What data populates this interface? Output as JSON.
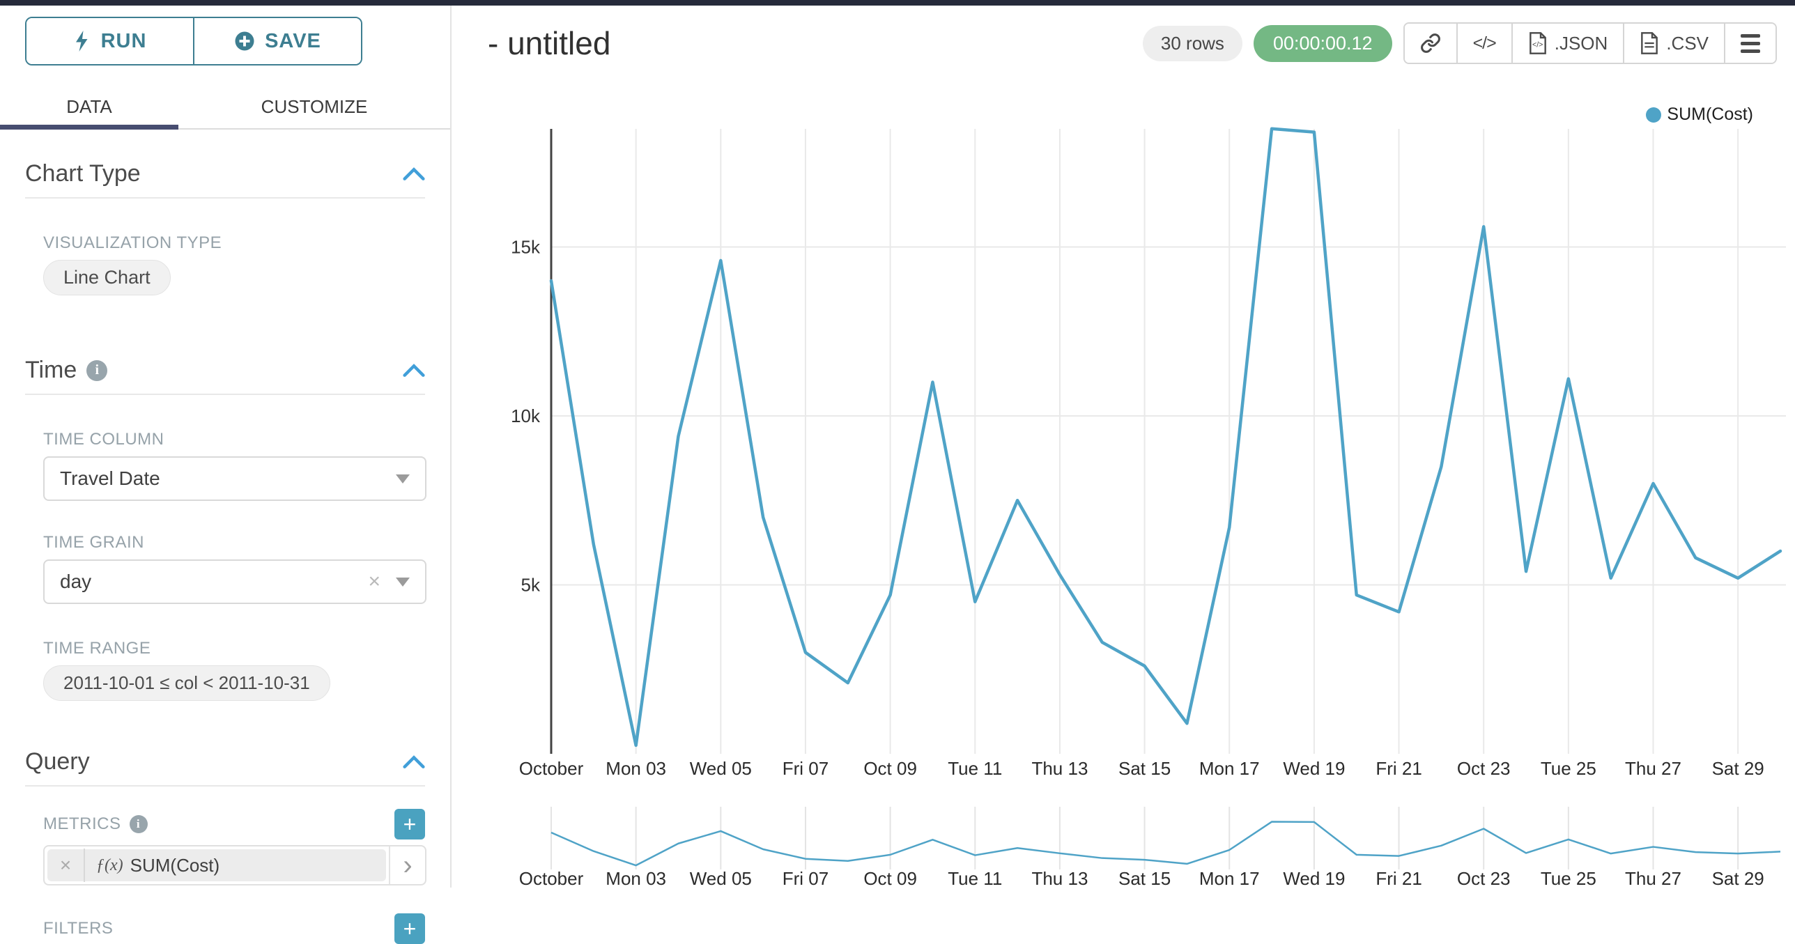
{
  "colors": {
    "accent_teal": "#3D7E91",
    "add_button_blue": "#4AA2C0",
    "section_chevron_blue": "#419FD9",
    "active_tab_underline": "#474D70",
    "timer_green": "#74B884",
    "series_line": "#4FA3C7",
    "top_bar": "#262A3B"
  },
  "icons": [
    "lightning-icon",
    "plus-circle-icon",
    "info-icon",
    "chevron-up-icon",
    "caret-down-icon",
    "clear-x-icon",
    "add-plus-icon",
    "chevron-right-icon",
    "link-icon",
    "code-icon",
    "file-json-icon",
    "file-csv-icon",
    "menu-icon",
    "legend-dot"
  ],
  "sidebar": {
    "run_label": "RUN",
    "save_label": "SAVE",
    "tabs": [
      {
        "label": "DATA",
        "active": true
      },
      {
        "label": "CUSTOMIZE",
        "active": false
      }
    ],
    "chart_type": {
      "title": "Chart Type",
      "viz_label": "VISUALIZATION TYPE",
      "viz_value": "Line Chart"
    },
    "time": {
      "title": "Time",
      "col_label": "TIME COLUMN",
      "col_value": "Travel Date",
      "grain_label": "TIME GRAIN",
      "grain_value": "day",
      "range_label": "TIME RANGE",
      "range_value": "2011-10-01 ≤ col < 2011-10-31"
    },
    "query": {
      "title": "Query",
      "metrics_label": "METRICS",
      "metric_fx": "ƒ(x)",
      "metric_value": "SUM(Cost)",
      "filters_label": "FILTERS"
    }
  },
  "header": {
    "title": "- untitled",
    "rows_badge": "30 rows",
    "timer": "00:00:00.12",
    "export": {
      "json_label": ".JSON",
      "csv_label": ".CSV"
    }
  },
  "chart_data": {
    "type": "line",
    "title": "",
    "legend": [
      {
        "name": "SUM(Cost)",
        "color": "#4FA3C7",
        "position": "top-right"
      }
    ],
    "num_points": 30,
    "x_tick_labels": [
      "October",
      "Mon 03",
      "Wed 05",
      "Fri 07",
      "Oct 09",
      "Tue 11",
      "Thu 13",
      "Sat 15",
      "Mon 17",
      "Wed 19",
      "Fri 21",
      "Oct 23",
      "Tue 25",
      "Thu 27",
      "Sat 29"
    ],
    "tick_every": 2,
    "series": [
      {
        "name": "SUM(Cost)",
        "values": [
          14000,
          6200,
          250,
          9400,
          14600,
          7000,
          3000,
          2100,
          4700,
          11000,
          4500,
          7500,
          5300,
          3300,
          2600,
          900,
          6700,
          18500,
          18400,
          4700,
          4200,
          8500,
          15600,
          5400,
          11100,
          5200,
          8000,
          5800,
          5200,
          6000
        ]
      }
    ],
    "y_ticks": [
      {
        "value": 5000,
        "label": "5k"
      },
      {
        "value": 10000,
        "label": "10k"
      },
      {
        "value": 15000,
        "label": "15k"
      }
    ],
    "ylim": [
      0,
      18500
    ],
    "grid": true,
    "mini_context_chart": true
  }
}
